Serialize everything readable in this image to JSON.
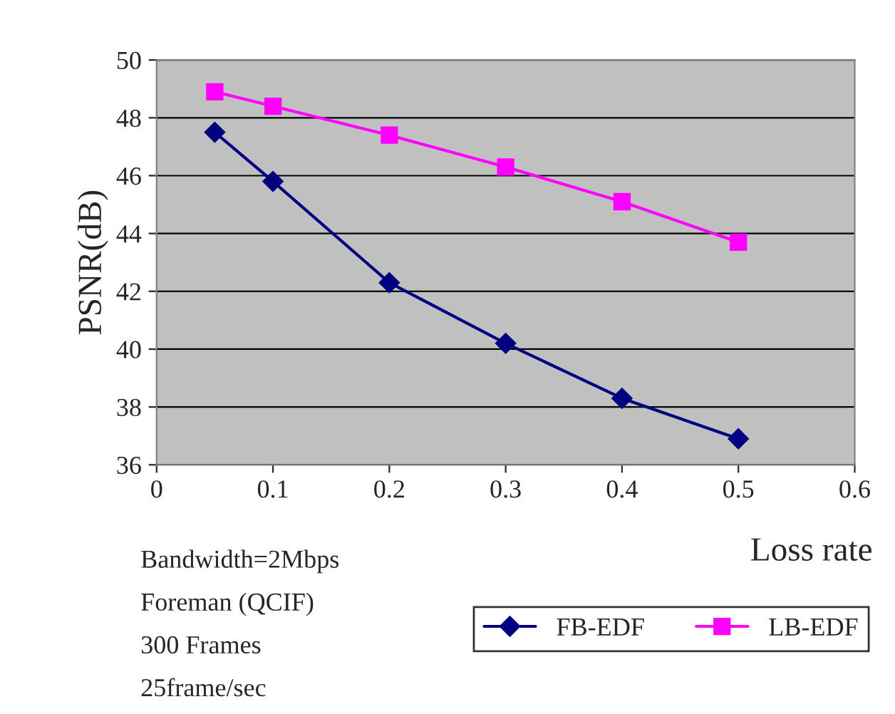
{
  "chart_data": {
    "type": "line",
    "xlabel": "Loss rate",
    "ylabel": "PSNR(dB)",
    "x": [
      0.05,
      0.1,
      0.2,
      0.3,
      0.4,
      0.5
    ],
    "series": [
      {
        "name": "FB-EDF",
        "color": "#000080",
        "marker": "diamond",
        "values": [
          47.5,
          45.8,
          42.3,
          40.2,
          38.3,
          36.9
        ]
      },
      {
        "name": "LB-EDF",
        "color": "#ff00ff",
        "marker": "square",
        "values": [
          48.9,
          48.4,
          47.4,
          46.3,
          45.1,
          43.7
        ]
      }
    ],
    "xlim": [
      0,
      0.6
    ],
    "xticks": [
      0,
      0.1,
      0.2,
      0.3,
      0.4,
      0.5,
      0.6
    ],
    "ylim": [
      36,
      50
    ],
    "yticks": [
      36,
      38,
      40,
      42,
      44,
      46,
      48,
      50
    ],
    "grid": "y",
    "legend": "bottom right",
    "line_style": "solid",
    "annotations": [
      "Bandwidth=2Mbps",
      "Foreman (QCIF)",
      "300 Frames",
      "25frame/sec"
    ]
  }
}
